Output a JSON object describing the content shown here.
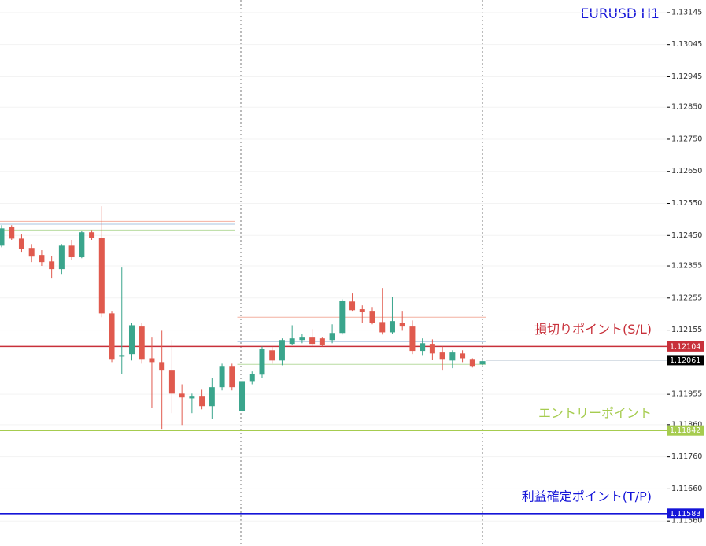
{
  "chart_data": {
    "type": "candlestick",
    "title": "EURUSD H1",
    "title_color": "#1a1ad8",
    "up_color": "#3aa58c",
    "down_color": "#e05a4e",
    "ylim": [
      1.11482,
      1.13184
    ],
    "yticks": [
      1.13145,
      1.13045,
      1.12945,
      {
        "value": 1.1285,
        "label": "1.12850"
      },
      {
        "value": 1.1275,
        "label": "1.12750"
      },
      {
        "value": 1.1265,
        "label": "1.12650"
      },
      {
        "value": 1.1255,
        "label": "1.12550"
      },
      {
        "value": 1.1245,
        "label": "1.12450"
      },
      1.12355,
      1.12255,
      1.12155,
      1.11955,
      {
        "value": 1.1186,
        "label": "1.11860"
      },
      {
        "value": 1.1176,
        "label": "1.11760"
      },
      {
        "value": 1.1166,
        "label": "1.11660"
      },
      {
        "value": 1.1156,
        "label": "1.11560"
      }
    ],
    "grid": true,
    "open": [
      1.12418,
      1.12477,
      1.1244,
      1.12411,
      1.12389,
      1.12369,
      1.12345,
      1.12418,
      1.12382,
      1.1246,
      1.12443,
      1.12207,
      1.12072,
      1.1208,
      1.12166,
      1.12067,
      1.12055,
      1.12031,
      1.11957,
      1.11942,
      1.1195,
      1.11918,
      1.11977,
      1.12043,
      1.11903,
      1.11996,
      1.12016,
      1.12092,
      1.1206,
      1.12112,
      1.12124,
      1.12134,
      1.12129,
      1.12124,
      1.12146,
      1.12244,
      1.1222,
      1.12215,
      1.1218,
      1.12148,
      1.12178,
      1.12166,
      1.1209,
      1.12112,
      1.12085,
      1.1206,
      1.12082,
      1.12065,
      1.12048
    ],
    "high": [
      1.12482,
      1.12482,
      1.12453,
      1.12423,
      1.12404,
      1.12386,
      1.12423,
      1.12436,
      1.12465,
      1.12467,
      1.12541,
      1.12215,
      1.1235,
      1.12178,
      1.12178,
      1.12134,
      1.12153,
      1.12124,
      1.11986,
      1.11957,
      1.11969,
      1.12006,
      1.1205,
      1.1205,
      1.12006,
      1.12026,
      1.12104,
      1.12104,
      1.12129,
      1.1217,
      1.12144,
      1.12158,
      1.12134,
      1.12173,
      1.12251,
      1.12269,
      1.12232,
      1.12227,
      1.12286,
      1.12259,
      1.12215,
      1.12185,
      1.12129,
      1.12126,
      1.12104,
      1.12092,
      1.12092,
      1.12067,
      1.1206
    ],
    "low": [
      1.12413,
      1.12436,
      1.12399,
      1.12367,
      1.12355,
      1.12318,
      1.1233,
      1.12374,
      1.12379,
      1.12436,
      1.12195,
      1.12055,
      1.12018,
      1.1206,
      1.1205,
      1.11913,
      1.11847,
      1.11896,
      1.11859,
      1.11896,
      1.11908,
      1.11878,
      1.11967,
      1.11967,
      1.11896,
      1.11986,
      1.12006,
      1.1205,
      1.12045,
      1.12109,
      1.12114,
      1.12104,
      1.12104,
      1.12114,
      1.12141,
      1.12215,
      1.12178,
      1.12173,
      1.12141,
      1.12144,
      1.12153,
      1.1208,
      1.12077,
      1.12063,
      1.12031,
      1.12036,
      1.12055,
      1.12038,
      1.12045
    ],
    "close": [
      1.12472,
      1.1244,
      1.12409,
      1.12384,
      1.12367,
      1.12345,
      1.12418,
      1.12382,
      1.1246,
      1.12443,
      1.12207,
      1.12065,
      1.12077,
      1.1217,
      1.12065,
      1.12055,
      1.12031,
      1.11957,
      1.11945,
      1.1195,
      1.11918,
      1.11977,
      1.12043,
      1.11977,
      1.11996,
      1.12018,
      1.12097,
      1.1206,
      1.12124,
      1.12129,
      1.12134,
      1.12112,
      1.12109,
      1.12146,
      1.12247,
      1.12217,
      1.12212,
      1.12178,
      1.12148,
      1.12183,
      1.12166,
      1.1209,
      1.12114,
      1.12082,
      1.12065,
      1.12085,
      1.12067,
      1.12043,
      1.12058
    ],
    "range_lines": [
      {
        "value": 1.12494,
        "color": "#f4b0a0",
        "start": 0,
        "end": 23
      },
      {
        "value": 1.12485,
        "color": "#a9c4e0",
        "start": 0,
        "end": 23
      },
      {
        "value": 1.12467,
        "color": "#b8dca0",
        "start": 0,
        "end": 23
      },
      {
        "value": 1.12195,
        "color": "#f4b0a0",
        "start": 24,
        "end": 48
      },
      {
        "value": 1.12119,
        "color": "#a9c4e0",
        "start": 24,
        "end": 48
      },
      {
        "value": 1.12048,
        "color": "#b8dca0",
        "start": 24,
        "end": 48
      }
    ],
    "levels": [
      {
        "value": 1.12104,
        "color": "#c8303a",
        "label": "損切りポイント(S/L)"
      },
      {
        "value": 1.11842,
        "color": "#a6cc4f",
        "label": "エントリーポイント"
      },
      {
        "value": 1.11583,
        "color": "#1515d8",
        "label": "利益確定ポイント(T/P)"
      }
    ],
    "last_price": 1.12061,
    "last_price_color": "#000000"
  }
}
